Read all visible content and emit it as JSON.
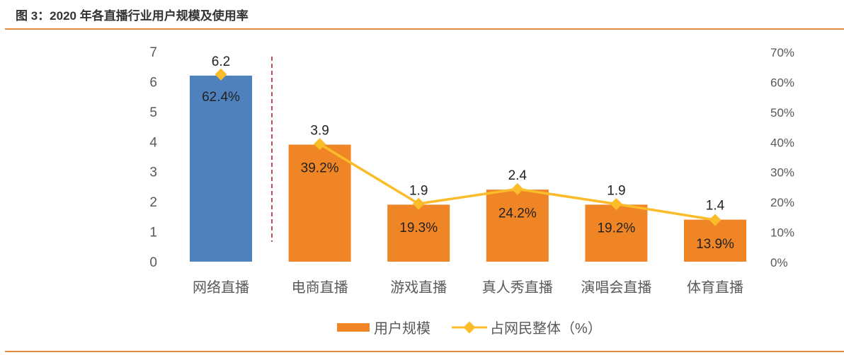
{
  "title": "图 3：2020 年各直播行业用户规模及使用率",
  "chart_data": {
    "type": "bar+line",
    "categories": [
      "网络直播",
      "电商直播",
      "游戏直播",
      "真人秀直播",
      "演唱会直播",
      "体育直播"
    ],
    "series": [
      {
        "name": "用户规模",
        "type": "bar",
        "axis": "left",
        "values": [
          6.2,
          3.9,
          1.9,
          2.4,
          1.9,
          1.4
        ],
        "labels": [
          "6.2",
          "3.9",
          "1.9",
          "2.4",
          "1.9",
          "1.4"
        ]
      },
      {
        "name": "占网民整体（%）",
        "type": "line",
        "axis": "right",
        "values": [
          62.4,
          39.2,
          19.3,
          24.2,
          19.2,
          13.9
        ],
        "labels": [
          "62.4%",
          "39.2%",
          "19.3%",
          "24.2%",
          "19.2%",
          "13.9%"
        ]
      }
    ],
    "left_axis": {
      "ylim": [
        0,
        7
      ],
      "ticks": [
        "0",
        "1",
        "2",
        "3",
        "4",
        "5",
        "6",
        "7"
      ]
    },
    "right_axis": {
      "ylim": [
        0,
        70
      ],
      "ticks": [
        "0%",
        "10%",
        "20%",
        "30%",
        "40%",
        "50%",
        "60%",
        "70%"
      ]
    },
    "colors": {
      "bar_first": "#4f81bd",
      "bar": "#f08526",
      "line": "#fbbc2a",
      "divider": "#c0504d"
    },
    "grid": false,
    "legend": "bottom"
  }
}
